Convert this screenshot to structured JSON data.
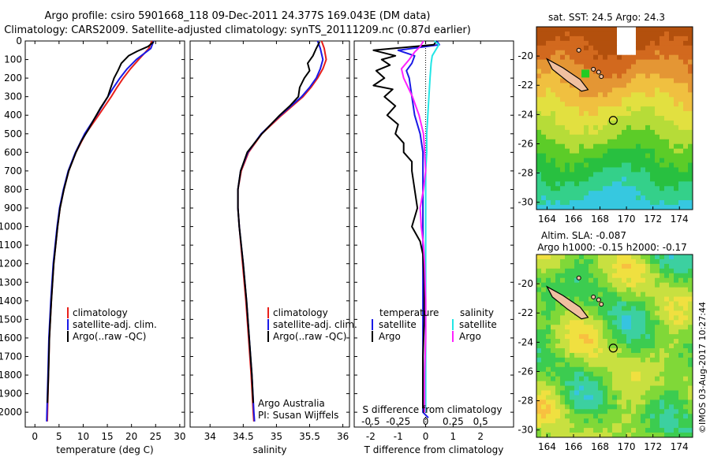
{
  "header": {
    "line1": "Argo profile: csiro 5901668_118 09-Dec-2011 24.377S 169.043E (DM data)",
    "line2": "Climatology: CARS2009. Satellite-adjusted climatology: synTS_20111209.nc (0.87d earlier)"
  },
  "colors": {
    "climatology": "#e8201b",
    "satellite": "#1a1ae6",
    "argo": "#000000",
    "argo_salinity": "#ff22ff",
    "satellite_salinity": "#22e6e6"
  },
  "chart_data": [
    {
      "type": "line",
      "panel": "temperature",
      "xlabel": "temperature (deg C)",
      "ylabel": "",
      "xlim": [
        -2,
        31
      ],
      "ylim": [
        2080,
        0
      ],
      "xticks": [
        "0",
        "5",
        "10",
        "15",
        "20",
        "25",
        "30"
      ],
      "yticks": [
        "0",
        "100",
        "200",
        "300",
        "400",
        "500",
        "600",
        "700",
        "800",
        "900",
        "1000",
        "1100",
        "1200",
        "1300",
        "1400",
        "1500",
        "1600",
        "1700",
        "1800",
        "1900",
        "2000"
      ],
      "legend": [
        "climatology",
        "satellite-adj. clim.",
        "Argo(..raw -QC)"
      ],
      "series": [
        {
          "name": "climatology",
          "depth": [
            0,
            40,
            100,
            150,
            200,
            250,
            300,
            400,
            500,
            600,
            700,
            800,
            900,
            1000,
            1200,
            1400,
            1600,
            1800,
            2000,
            2050
          ],
          "values": [
            24.2,
            23.6,
            21.5,
            19.8,
            18.3,
            17.0,
            15.8,
            13.2,
            10.5,
            8.5,
            7.0,
            6.0,
            5.2,
            4.7,
            3.9,
            3.4,
            3.0,
            2.8,
            2.6,
            2.55
          ]
        },
        {
          "name": "satellite-adj. clim.",
          "depth": [
            0,
            40,
            100,
            150,
            200,
            250,
            300,
            400,
            500,
            600,
            700,
            800,
            900,
            1000,
            1200,
            1400,
            1600,
            1800,
            2000,
            2050
          ],
          "values": [
            24.6,
            24.0,
            21.0,
            19.1,
            17.6,
            16.3,
            15.1,
            12.8,
            10.3,
            8.4,
            6.9,
            5.9,
            5.1,
            4.6,
            3.8,
            3.3,
            2.9,
            2.7,
            2.5,
            2.45
          ]
        },
        {
          "name": "Argo(..raw -QC)",
          "depth": [
            5,
            30,
            55,
            80,
            120,
            160,
            200,
            260,
            300,
            360,
            420,
            480,
            540,
            600,
            700,
            800,
            900,
            1000,
            1200,
            1400,
            1600,
            1800,
            1950
          ],
          "values": [
            24.6,
            23.4,
            21.2,
            19.4,
            17.9,
            17.2,
            16.4,
            15.6,
            15.1,
            13.6,
            12.3,
            11.0,
            9.6,
            8.5,
            7.0,
            6.0,
            5.2,
            4.7,
            3.9,
            3.4,
            3.0,
            2.8,
            2.6
          ]
        }
      ]
    },
    {
      "type": "line",
      "panel": "salinity",
      "xlabel": "salinity",
      "xlim": [
        33.7,
        36.1
      ],
      "ylim": [
        2080,
        0
      ],
      "xticks": [
        "34",
        "34.5",
        "35",
        "35.5",
        "36"
      ],
      "legend": [
        "climatology",
        "satellite-adj. clim.",
        "Argo(..raw -QC)"
      ],
      "annotation": [
        "Argo Australia",
        "PI: Susan Wijffels"
      ],
      "series": [
        {
          "name": "climatology",
          "depth": [
            0,
            40,
            100,
            150,
            200,
            250,
            300,
            400,
            500,
            600,
            700,
            800,
            900,
            1000,
            1200,
            1400,
            1600,
            1800,
            2000,
            2050
          ],
          "values": [
            35.68,
            35.72,
            35.75,
            35.7,
            35.62,
            35.52,
            35.4,
            35.08,
            34.78,
            34.58,
            34.47,
            34.42,
            34.42,
            34.44,
            34.49,
            34.54,
            34.58,
            34.62,
            34.65,
            34.66
          ]
        },
        {
          "name": "satellite-adj. clim.",
          "depth": [
            0,
            40,
            100,
            150,
            200,
            250,
            300,
            400,
            500,
            600,
            700,
            800,
            900,
            1000,
            1200,
            1400,
            1600,
            1800,
            2000,
            2050
          ],
          "values": [
            35.62,
            35.66,
            35.7,
            35.66,
            35.6,
            35.5,
            35.38,
            35.06,
            34.77,
            34.57,
            34.46,
            34.42,
            34.42,
            34.44,
            34.5,
            34.55,
            34.59,
            34.63,
            34.66,
            34.67
          ]
        },
        {
          "name": "Argo(..raw -QC)",
          "depth": [
            5,
            40,
            80,
            120,
            160,
            200,
            250,
            300,
            350,
            400,
            500,
            600,
            700,
            800,
            900,
            1000,
            1200,
            1400,
            1600,
            1800,
            1950
          ],
          "values": [
            35.65,
            35.6,
            35.55,
            35.47,
            35.5,
            35.42,
            35.35,
            35.33,
            35.2,
            35.05,
            34.78,
            34.56,
            34.46,
            34.42,
            34.42,
            34.44,
            34.5,
            34.55,
            34.59,
            34.63,
            34.65
          ]
        }
      ]
    },
    {
      "type": "line",
      "panel": "difference",
      "xlabel": "T difference from climatology",
      "xlabel2": "S difference from climatology",
      "xlim": [
        -2.6,
        3.2
      ],
      "ylim": [
        2080,
        0
      ],
      "xticks_T": [
        "-2",
        "-1",
        "0",
        "1",
        "2"
      ],
      "xticks_S": [
        "-0.5",
        "-0.25",
        "0",
        "0.25",
        "0.5"
      ],
      "legend_titles": [
        "temperature",
        "salinity"
      ],
      "legend": [
        "satellite",
        "Argo",
        "satellite",
        "Argo"
      ],
      "series": [
        {
          "name": "temperature satellite",
          "depth": [
            0,
            20,
            50,
            80,
            120,
            160,
            200,
            300,
            400,
            500,
            600,
            700,
            800,
            900,
            1000,
            1100,
            1200,
            1400,
            1600,
            1800,
            2000,
            2030
          ],
          "values": [
            0.4,
            0.5,
            -1.0,
            -0.4,
            -0.5,
            -0.7,
            -0.6,
            -0.5,
            -0.4,
            -0.2,
            -0.1,
            -0.1,
            -0.1,
            -0.1,
            -0.1,
            -0.1,
            -0.1,
            -0.1,
            -0.1,
            -0.1,
            -0.1,
            0.1
          ]
        },
        {
          "name": "temperature Argo",
          "depth": [
            0,
            20,
            50,
            80,
            100,
            130,
            160,
            200,
            240,
            260,
            300,
            350,
            400,
            450,
            500,
            550,
            600,
            650,
            700,
            800,
            900,
            1000,
            1080,
            1150,
            1300,
            1500,
            1700,
            1900,
            1980
          ],
          "values": [
            0.4,
            0.3,
            -1.9,
            -1.1,
            -1.6,
            -1.3,
            -1.8,
            -1.5,
            -1.9,
            -1.2,
            -1.5,
            -1.1,
            -1.4,
            -1.0,
            -1.1,
            -0.8,
            -0.8,
            -0.5,
            -0.5,
            -0.4,
            -0.3,
            -0.5,
            -0.2,
            -0.1,
            -0.05,
            -0.05,
            -0.1,
            -0.1,
            -0.1
          ]
        },
        {
          "name": "salinity satellite",
          "depth": [
            0,
            20,
            50,
            80,
            120,
            200,
            300,
            400,
            500,
            600,
            700,
            800,
            900,
            1000,
            1200,
            1400,
            1600,
            1800,
            2000
          ],
          "values": [
            0.08,
            0.12,
            0.09,
            0.06,
            0.05,
            0.04,
            0.03,
            0.02,
            0.01,
            0.01,
            0.0,
            0.0,
            0.0,
            0.0,
            0.0,
            0.0,
            0.0,
            0.0,
            0.0
          ]
        },
        {
          "name": "salinity Argo",
          "depth": [
            0,
            30,
            60,
            100,
            150,
            200,
            250,
            300,
            400,
            500,
            600,
            700,
            800,
            900,
            1000,
            1100,
            1200,
            1400,
            1600,
            1800,
            2000
          ],
          "values": [
            -0.02,
            -0.05,
            -0.1,
            -0.15,
            -0.22,
            -0.2,
            -0.16,
            -0.12,
            -0.06,
            -0.02,
            -0.01,
            0.0,
            -0.02,
            -0.05,
            -0.04,
            -0.02,
            -0.01,
            0.0,
            0.0,
            -0.01,
            -0.01
          ]
        }
      ]
    },
    {
      "type": "heatmap",
      "panel": "sst-map",
      "title": "sat. SST: 24.5  Argo: 24.3",
      "xlim": [
        163.2,
        175.0
      ],
      "ylim": [
        -30.5,
        -18.0
      ],
      "xticks": [
        "164",
        "166",
        "168",
        "170",
        "172",
        "174"
      ],
      "yticks": [
        "-20",
        "-22",
        "-24",
        "-26",
        "-28",
        "-30"
      ],
      "argo_position": [
        169.0,
        -24.4
      ]
    },
    {
      "type": "heatmap",
      "panel": "sla-map",
      "title_line1": "Altim. SLA: -0.087",
      "title_line2": "Argo h1000: -0.15 h2000: -0.17",
      "xlim": [
        163.2,
        175.0
      ],
      "ylim": [
        -30.5,
        -18.0
      ],
      "xticks": [
        "164",
        "166",
        "168",
        "170",
        "172",
        "174"
      ],
      "yticks": [
        "-20",
        "-22",
        "-24",
        "-26",
        "-28",
        "-30"
      ],
      "argo_position": [
        169.0,
        -24.4
      ]
    }
  ],
  "watermark": "©IMOS 03-Aug-2017 10:27:44"
}
